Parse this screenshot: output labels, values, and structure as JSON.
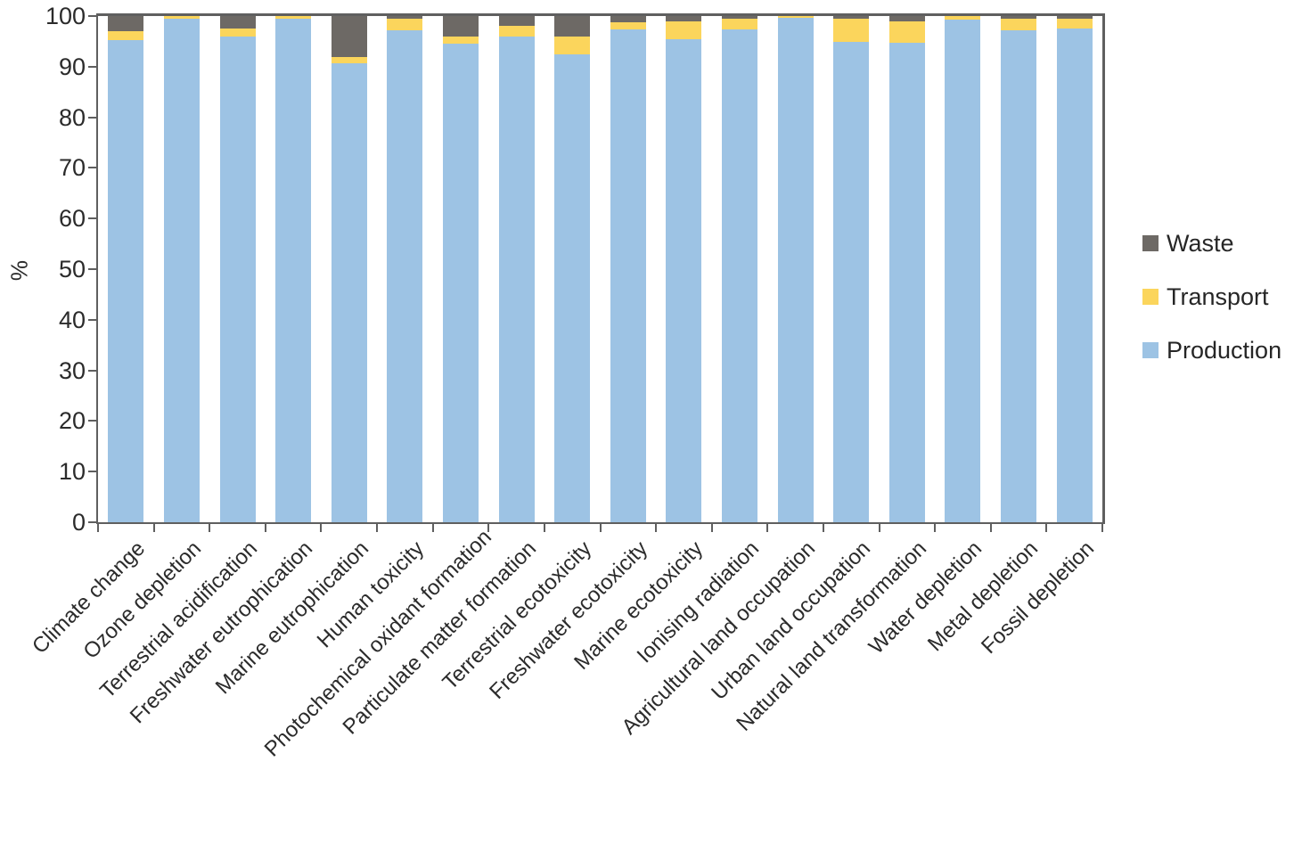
{
  "chart_data": {
    "type": "bar",
    "stacked": true,
    "percent_stacked": true,
    "title": "",
    "xlabel": "",
    "ylabel": "%",
    "ylim": [
      0,
      100
    ],
    "yticks": [
      0,
      10,
      20,
      30,
      40,
      50,
      60,
      70,
      80,
      90,
      100
    ],
    "grid": false,
    "legend_position": "right",
    "categories": [
      "Climate change",
      "Ozone depletion",
      "Terrestrial acidification",
      "Freshwater eutrophication",
      "Marine eutrophication",
      "Human toxicity",
      "Photochemical oxidant formation",
      "Particulate matter formation",
      "Terrestrial ecotoxicity",
      "Freshwater ecotoxicity",
      "Marine ecotoxicity",
      "Ionising radiation",
      "Agricultural land occupation",
      "Urban land occupation",
      "Natural land transformation",
      "Water depletion",
      "Metal depletion",
      "Fossil depletion"
    ],
    "series": [
      {
        "name": "Waste",
        "color": "#6D6965",
        "values": [
          3.0,
          0.0,
          2.5,
          0.0,
          8.1,
          0.6,
          4.0,
          2.0,
          4.0,
          1.3,
          1.0,
          0.6,
          0.0,
          0.6,
          1.0,
          0.0,
          0.5,
          0.5
        ]
      },
      {
        "name": "Transport",
        "color": "#FBD55C",
        "values": [
          1.8,
          0.5,
          1.5,
          0.6,
          1.2,
          2.3,
          1.5,
          2.0,
          3.5,
          1.4,
          3.5,
          2.0,
          0.3,
          4.5,
          4.2,
          0.7,
          2.3,
          2.0
        ]
      },
      {
        "name": "Production",
        "color": "#9DC3E4",
        "values": [
          95.2,
          99.5,
          96.0,
          99.4,
          90.7,
          97.1,
          94.5,
          96.0,
          92.5,
          97.3,
          95.5,
          97.4,
          99.7,
          94.9,
          94.8,
          99.3,
          97.2,
          97.5
        ]
      }
    ],
    "axis_color": "#5f5f5f",
    "text_color": "#2b2b2b"
  }
}
